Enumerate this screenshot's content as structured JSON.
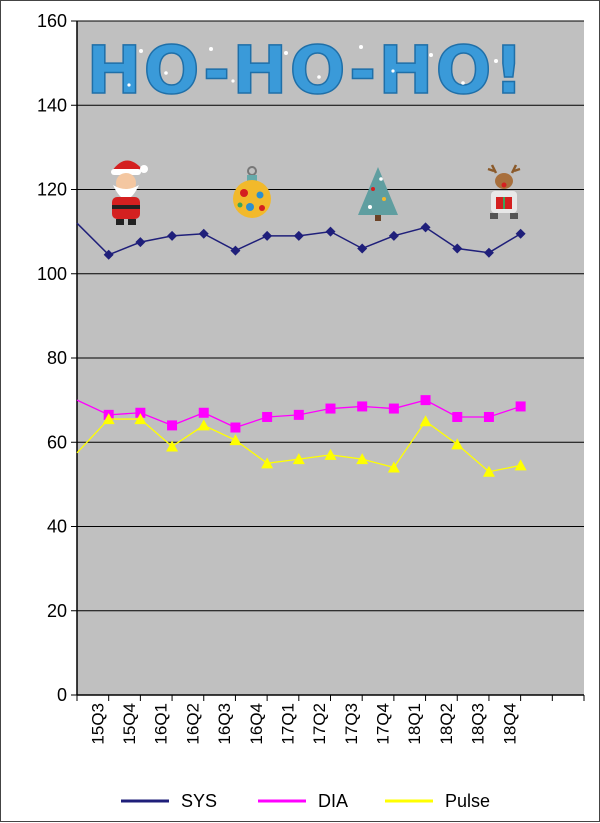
{
  "chart_data": {
    "type": "line",
    "title": "",
    "banner": "HO-HO-HO!",
    "xlabel": "",
    "ylabel": "",
    "ylim": [
      0,
      160
    ],
    "yticks": [
      0,
      20,
      40,
      60,
      80,
      100,
      120,
      140,
      160
    ],
    "grid": true,
    "legend_position": "bottom",
    "plot_background": "#c0c0c0",
    "categories": [
      "15Q3",
      "15Q4",
      "16Q1",
      "16Q2",
      "16Q3",
      "16Q4",
      "17Q1",
      "17Q2",
      "17Q3",
      "17Q4",
      "18Q1",
      "18Q2",
      "18Q3",
      "18Q4"
    ],
    "series": [
      {
        "name": "SYS",
        "color": "#1f1f7a",
        "marker": "diamond",
        "lead_in": 112,
        "values": [
          104.5,
          107.5,
          109,
          109.5,
          105.5,
          109,
          109,
          110,
          106,
          109,
          111,
          106,
          105,
          109.5
        ]
      },
      {
        "name": "DIA",
        "color": "#ff00ff",
        "marker": "square",
        "lead_in": 70,
        "values": [
          66.5,
          67,
          64,
          67,
          63.5,
          66,
          66.5,
          68,
          68.5,
          68,
          70,
          66,
          66,
          68.5
        ]
      },
      {
        "name": "Pulse",
        "color": "#ffff00",
        "marker": "triangle",
        "lead_in": 57.5,
        "values": [
          65.5,
          65.5,
          59,
          64,
          60.5,
          55,
          56,
          57,
          56,
          54,
          65,
          59.5,
          53,
          54.5
        ]
      }
    ],
    "decorations": [
      "santa-icon",
      "ornament-icon",
      "christmas-tree-icon",
      "reindeer-icon"
    ]
  }
}
